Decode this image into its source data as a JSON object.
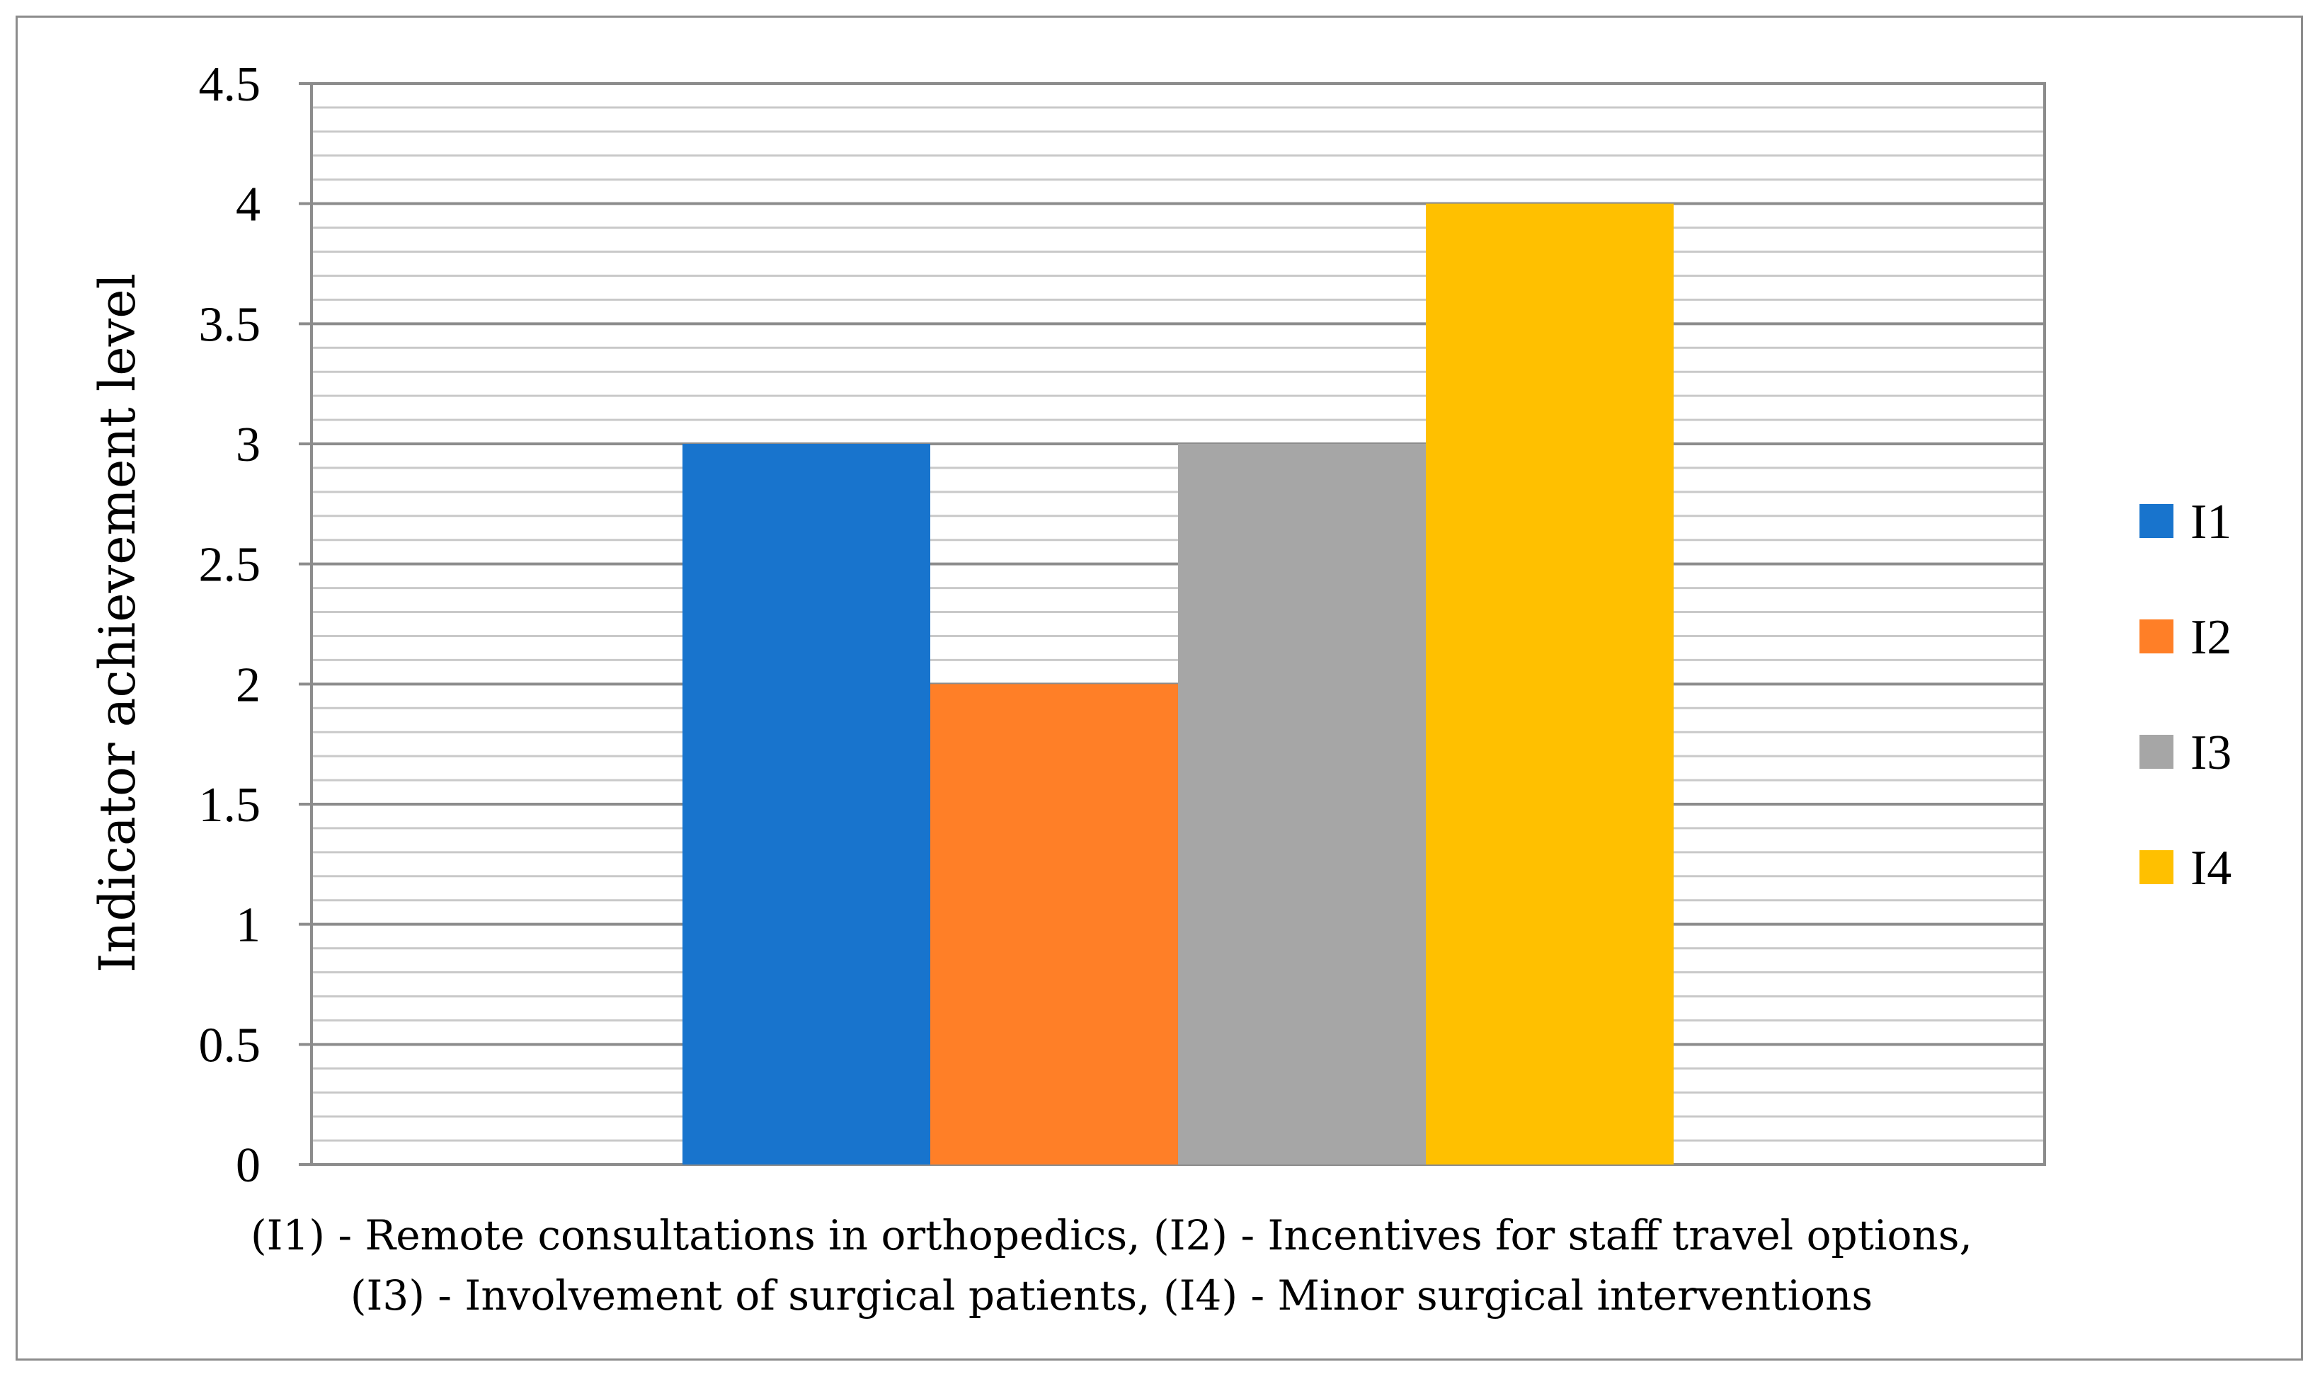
{
  "chart_data": {
    "type": "bar",
    "series": [
      {
        "name": "I1",
        "value": 3,
        "color": "#1874CD"
      },
      {
        "name": "I2",
        "value": 2,
        "color": "#FF7F27"
      },
      {
        "name": "I3",
        "value": 3,
        "color": "#A6A6A6"
      },
      {
        "name": "I4",
        "value": 4,
        "color": "#FFC000"
      }
    ],
    "ylabel": "Indicator achievement level",
    "ylim": [
      0,
      4.5
    ],
    "yticks": [
      "0",
      "0.5",
      "1",
      "1.5",
      "2",
      "2.5",
      "3",
      "3.5",
      "4",
      "4.5"
    ],
    "ytick_values": [
      0,
      0.5,
      1,
      1.5,
      2,
      2.5,
      3,
      3.5,
      4,
      4.5
    ],
    "minor_grid_step": 0.1,
    "grid": true,
    "legend_position": "right",
    "caption_lines": [
      "(I1) - Remote consultations in orthopedics, (I2) - Incentives for staff travel options,",
      "(I3) - Involvement of surgical patients, (I4) - Minor surgical interventions"
    ]
  }
}
